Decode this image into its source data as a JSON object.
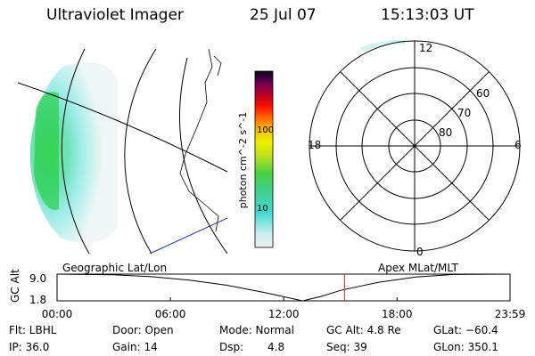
{
  "header": {
    "title": "Ultraviolet Imager",
    "date": "25 Jul 07",
    "time": "15:13:03 UT"
  },
  "colorbar": {
    "label": "photon cm^-2 s^-1",
    "ticks": [
      "100",
      "10"
    ],
    "colors": [
      "#f0f0f0",
      "#c8f0ee",
      "#5ee6e0",
      "#40d8a8",
      "#48d040",
      "#a8e020",
      "#f0f000",
      "#ffc000",
      "#ff8000",
      "#ff2000",
      "#d00010",
      "#a00040",
      "#700060",
      "#300050",
      "#101010"
    ]
  },
  "polar_grid": {
    "mlt_labels": [
      "12",
      "18",
      "6",
      "0"
    ],
    "lat_labels": [
      "60",
      "70",
      "80"
    ]
  },
  "timeline": {
    "left_label": "Geographic Lat/Lon",
    "right_label": "Apex MLat/MLT",
    "ylabel": "GC Alt",
    "ymax_label": "9.0",
    "ymin_label": "1.8",
    "time_ticks": [
      "00:00",
      "06:00",
      "12:00",
      "18:00",
      "23:59"
    ]
  },
  "chart_data": {
    "type": "line",
    "title": "GC Alt",
    "xlabel": "",
    "ylabel": "GC Alt",
    "x_range": [
      "00:00",
      "23:59"
    ],
    "ylim": [
      1.8,
      9.0
    ],
    "series": [
      {
        "x": [
          "00:00",
          "03:00",
          "05:00",
          "07:00",
          "09:00",
          "11:00",
          "13:00",
          "14:00",
          "15:00",
          "17:00",
          "19:00",
          "21:00",
          "23:59"
        ],
        "values": [
          9.0,
          8.8,
          8.3,
          7.4,
          6.0,
          4.0,
          1.8,
          3.0,
          4.6,
          6.8,
          8.2,
          8.9,
          9.0
        ]
      }
    ],
    "marker_time": "15:13"
  },
  "info": {
    "filter": "Flt: LBHL",
    "door": "Door: Open",
    "mode": "Mode: Normal",
    "gc_alt": "GC Alt: 4.8 Re",
    "glat": "GLat: −60.4",
    "ip": "IP: 36.0",
    "gain": "Gain: 14",
    "dsp_label": "Dsp:",
    "dsp_value": "4.8",
    "seq": "Seq: 39",
    "glon": "GLon: 350.1"
  }
}
